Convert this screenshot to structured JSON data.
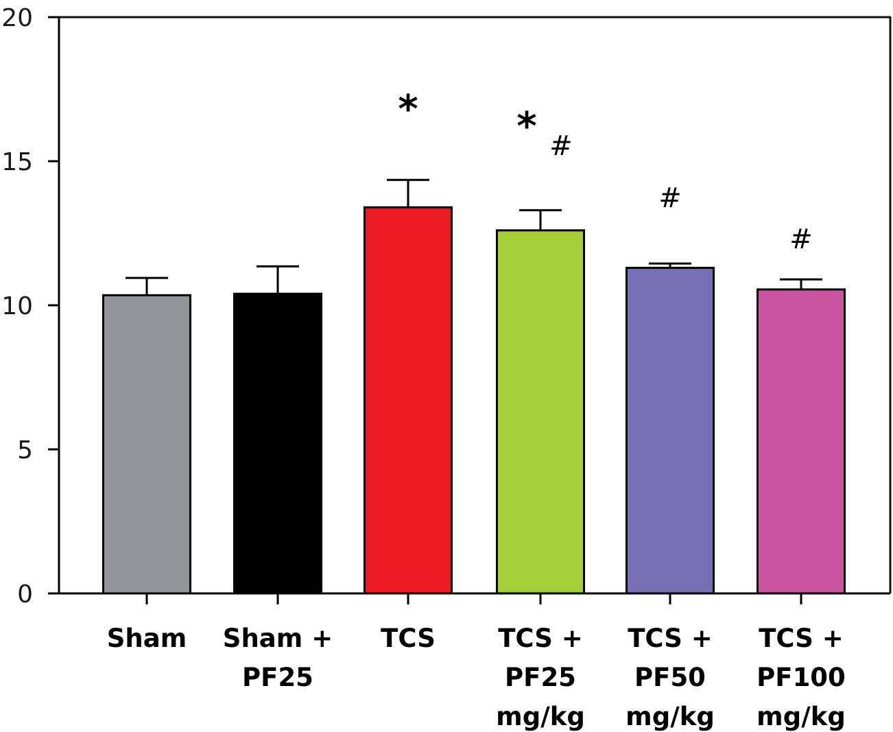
{
  "chart_data": {
    "type": "bar",
    "title": "",
    "xlabel": "",
    "ylabel": "",
    "ylim": [
      0,
      20
    ],
    "yticks": [
      0,
      5,
      10,
      15,
      20
    ],
    "ytick_labels": [
      "0",
      "5",
      "10",
      "15",
      "20"
    ],
    "grid": false,
    "legend": "none",
    "categories": [
      [
        "Sham"
      ],
      [
        "Sham +",
        "PF25"
      ],
      [
        "TCS"
      ],
      [
        "TCS +",
        "PF25",
        "mg/kg"
      ],
      [
        "TCS +",
        "PF50",
        "mg/kg"
      ],
      [
        "TCS +",
        "PF100",
        "mg/kg"
      ]
    ],
    "values": [
      10.35,
      10.4,
      13.4,
      12.6,
      11.3,
      10.55
    ],
    "errors": [
      0.6,
      0.95,
      0.95,
      0.7,
      0.15,
      0.35
    ],
    "colors": [
      "#939598",
      "#000000",
      "#ed1c24",
      "#a6ce39",
      "#7570b3",
      "#c9549f"
    ],
    "annotations": [
      {
        "category_index": 2,
        "marks": [
          "*"
        ]
      },
      {
        "category_index": 3,
        "marks": [
          "*",
          "#"
        ]
      },
      {
        "category_index": 4,
        "marks": [
          "#"
        ]
      },
      {
        "category_index": 5,
        "marks": [
          "#"
        ]
      }
    ]
  }
}
